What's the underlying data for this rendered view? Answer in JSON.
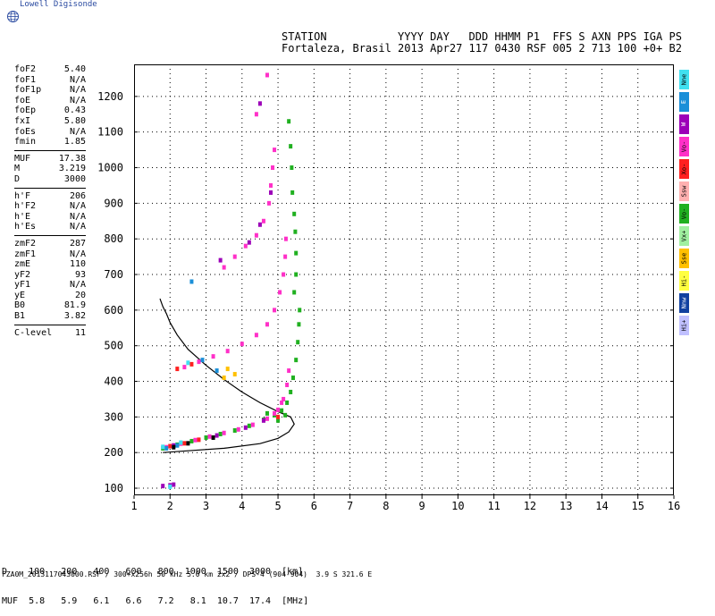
{
  "logo": {
    "text": "Lowell Digisonde"
  },
  "header": {
    "line1": "STATION           YYYY DAY   DDD HHMM P1  FFS S AXN PPS IGA PS",
    "line2": "Fortaleza, Brasil 2013 Apr27 117 0430 RSF 005 2 713 100 +0+ B2"
  },
  "params": {
    "group1": [
      {
        "name": "foF2",
        "value": "5.40"
      },
      {
        "name": "foF1",
        "value": "N/A"
      },
      {
        "name": "foF1p",
        "value": "N/A"
      },
      {
        "name": "foE",
        "value": "N/A"
      },
      {
        "name": "foEp",
        "value": "0.43"
      },
      {
        "name": "fxI",
        "value": "5.80"
      },
      {
        "name": "foEs",
        "value": "N/A"
      },
      {
        "name": "fmin",
        "value": "1.85"
      }
    ],
    "group2": [
      {
        "name": "MUF",
        "value": "17.38"
      },
      {
        "name": "M",
        "value": "3.219"
      },
      {
        "name": "D",
        "value": "3000"
      }
    ],
    "group3": [
      {
        "name": "h'F",
        "value": "206"
      },
      {
        "name": "h'F2",
        "value": "N/A"
      },
      {
        "name": "h'E",
        "value": "N/A"
      },
      {
        "name": "h'Es",
        "value": "N/A"
      }
    ],
    "group4": [
      {
        "name": "zmF2",
        "value": "287"
      },
      {
        "name": "zmF1",
        "value": "N/A"
      },
      {
        "name": "zmE",
        "value": "110"
      },
      {
        "name": "yF2",
        "value": "93"
      },
      {
        "name": "yF1",
        "value": "N/A"
      },
      {
        "name": "yE",
        "value": "20"
      },
      {
        "name": "B0",
        "value": "81.9"
      },
      {
        "name": "B1",
        "value": "3.82"
      }
    ],
    "group5": [
      {
        "name": "C-level",
        "value": "11"
      }
    ]
  },
  "legend": [
    {
      "label": "Nne",
      "color": "#40e0f0"
    },
    {
      "label": "E",
      "color": "#1a8fd8"
    },
    {
      "label": "W",
      "color": "#9c00b8"
    },
    {
      "label": "Vo-",
      "color": "#ff30c8"
    },
    {
      "label": "Xo-",
      "color": "#ff2020"
    },
    {
      "label": "Ssw",
      "color": "#ffb0b0"
    },
    {
      "label": "Vo-",
      "color": "#20b020"
    },
    {
      "label": "Vx+",
      "color": "#a0f0a0"
    },
    {
      "label": "Sse",
      "color": "#ffc000"
    },
    {
      "label": "Hi-",
      "color": "#ffff40"
    },
    {
      "label": "Nnw",
      "color": "#1040a0"
    },
    {
      "label": "Hi+",
      "color": "#c0c0ff"
    }
  ],
  "muf_table": {
    "line1": "D    100   200   400   600   800  1000  1500  3000  [km]",
    "line2": "MUF  5.8   5.9   6.1   6.6   7.2   8.1  10.7  17.4  [MHz]"
  },
  "footer": {
    "text": "FZA0M_2013117043000.RSF / 300+x256h 50 kHz 5.0 km 2x2 / DPS-4 (904-904)  3.9 S 321.6 E"
  },
  "chart_data": {
    "type": "scatter",
    "xlim": [
      1,
      16
    ],
    "ylim": [
      80,
      1290
    ],
    "x_ticks": [
      1,
      2,
      3,
      4,
      5,
      6,
      7,
      8,
      9,
      10,
      11,
      12,
      13,
      14,
      15,
      16
    ],
    "y_ticks": [
      100,
      200,
      300,
      400,
      500,
      600,
      700,
      800,
      900,
      1000,
      1100,
      1200
    ],
    "grid": true,
    "series": [
      {
        "color": "#20b020",
        "points": [
          [
            1.8,
            212
          ],
          [
            2.2,
            222
          ],
          [
            2.6,
            232
          ],
          [
            3.0,
            242
          ],
          [
            3.4,
            252
          ],
          [
            3.8,
            262
          ],
          [
            4.2,
            275
          ],
          [
            4.6,
            292
          ],
          [
            4.9,
            305
          ],
          [
            5.1,
            318
          ],
          [
            5.25,
            340
          ],
          [
            5.35,
            370
          ],
          [
            5.42,
            410
          ],
          [
            5.5,
            460
          ],
          [
            5.55,
            510
          ],
          [
            5.58,
            560
          ],
          [
            5.6,
            600
          ],
          [
            5.45,
            650
          ],
          [
            5.5,
            700
          ],
          [
            5.5,
            760
          ],
          [
            5.48,
            820
          ],
          [
            5.45,
            870
          ],
          [
            5.4,
            930
          ],
          [
            5.38,
            1000
          ],
          [
            5.35,
            1060
          ],
          [
            5.3,
            1130
          ],
          [
            4.7,
            310
          ],
          [
            5.0,
            290
          ],
          [
            5.2,
            305
          ]
        ]
      },
      {
        "color": "#ff30c8",
        "points": [
          [
            1.9,
            215
          ],
          [
            2.3,
            225
          ],
          [
            2.7,
            235
          ],
          [
            3.1,
            245
          ],
          [
            3.5,
            255
          ],
          [
            3.9,
            265
          ],
          [
            4.3,
            278
          ],
          [
            4.7,
            295
          ],
          [
            5.0,
            320
          ],
          [
            5.15,
            350
          ],
          [
            5.25,
            390
          ],
          [
            5.3,
            430
          ],
          [
            2.4,
            440
          ],
          [
            2.8,
            455
          ],
          [
            3.2,
            470
          ],
          [
            3.6,
            485
          ],
          [
            4.0,
            505
          ],
          [
            4.4,
            530
          ],
          [
            4.7,
            560
          ],
          [
            4.9,
            600
          ],
          [
            5.05,
            650
          ],
          [
            5.15,
            700
          ],
          [
            5.2,
            750
          ],
          [
            5.22,
            800
          ],
          [
            3.5,
            720
          ],
          [
            3.8,
            750
          ],
          [
            4.1,
            780
          ],
          [
            4.4,
            810
          ],
          [
            4.6,
            850
          ],
          [
            4.75,
            900
          ],
          [
            4.8,
            950
          ],
          [
            4.85,
            1000
          ],
          [
            4.9,
            1050
          ],
          [
            4.4,
            1150
          ],
          [
            4.7,
            1260
          ],
          [
            4.9,
            310
          ],
          [
            5.1,
            340
          ]
        ]
      },
      {
        "color": "#ff2020",
        "points": [
          [
            2.0,
            218
          ],
          [
            2.4,
            226
          ],
          [
            2.8,
            236
          ],
          [
            2.2,
            435
          ],
          [
            2.6,
            448
          ],
          [
            5.0,
            300
          ]
        ]
      },
      {
        "color": "#9c00b8",
        "points": [
          [
            2.1,
            220
          ],
          [
            3.3,
            248
          ],
          [
            4.1,
            270
          ],
          [
            4.6,
            290
          ],
          [
            3.4,
            740
          ],
          [
            4.2,
            790
          ],
          [
            4.5,
            840
          ],
          [
            4.8,
            930
          ],
          [
            4.5,
            1180
          ],
          [
            1.8,
            106
          ],
          [
            2.0,
            108
          ],
          [
            2.1,
            110
          ]
        ]
      },
      {
        "color": "#1a8fd8",
        "points": [
          [
            1.9,
            212
          ],
          [
            2.2,
            220
          ],
          [
            2.9,
            460
          ],
          [
            2.6,
            680
          ],
          [
            3.3,
            430
          ]
        ]
      },
      {
        "color": "#40e0f0",
        "points": [
          [
            1.8,
            216
          ],
          [
            2.3,
            228
          ],
          [
            2.5,
            452
          ],
          [
            2.0,
            104
          ]
        ]
      },
      {
        "color": "#000000",
        "points": [
          [
            2.1,
            215
          ],
          [
            2.5,
            226
          ],
          [
            3.2,
            242
          ]
        ]
      },
      {
        "color": "#ffc000",
        "points": [
          [
            3.6,
            435
          ],
          [
            3.8,
            420
          ],
          [
            3.5,
            410
          ]
        ]
      }
    ],
    "curve": {
      "color": "#000000",
      "points": [
        [
          1.8,
          200
        ],
        [
          2.5,
          205
        ],
        [
          3.5,
          212
        ],
        [
          4.5,
          225
        ],
        [
          5.0,
          240
        ],
        [
          5.3,
          258
        ],
        [
          5.45,
          280
        ],
        [
          5.35,
          300
        ],
        [
          5.0,
          315
        ],
        [
          4.5,
          340
        ],
        [
          4.0,
          370
        ],
        [
          3.5,
          405
        ],
        [
          3.0,
          445
        ],
        [
          2.5,
          490
        ],
        [
          2.2,
          530
        ],
        [
          2.0,
          565
        ],
        [
          1.9,
          590
        ],
        [
          1.8,
          610
        ],
        [
          1.72,
          632
        ]
      ]
    }
  }
}
